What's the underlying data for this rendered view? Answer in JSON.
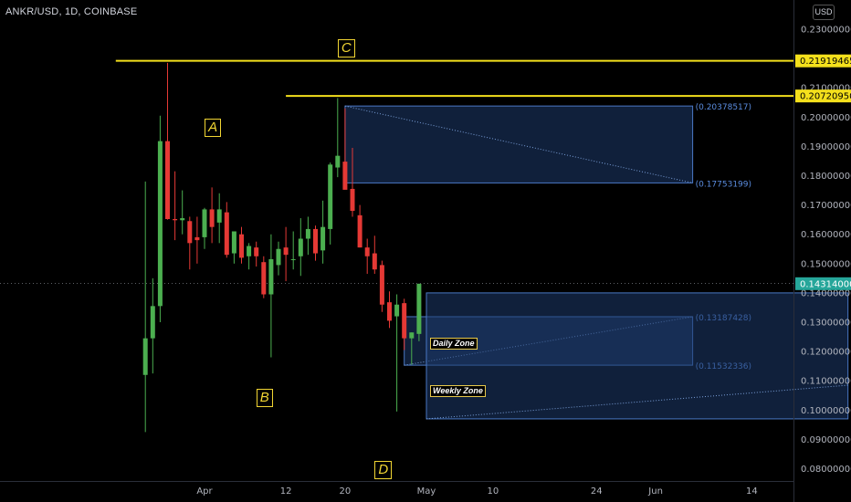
{
  "header": {
    "symbol": "ANKR/USD, 1D, COINBASE",
    "currency": "USD"
  },
  "colors": {
    "up": "#26a69a",
    "up_fill": "#4caf50",
    "down": "#e53935",
    "yellow": "#f4e01c",
    "zone_fill": "#1e3a6b",
    "zone_border": "#4a78c5",
    "price_tag": "#26a69a"
  },
  "chart_data": {
    "type": "candlestick",
    "ylim": [
      0.0755,
      0.2345
    ],
    "y_ticks": [
      "0.23000000",
      "0.22000000",
      "0.21000000",
      "0.20000000",
      "0.19000000",
      "0.18000000",
      "0.17000000",
      "0.16000000",
      "0.15000000",
      "0.14000000",
      "0.13000000",
      "0.12000000",
      "0.11000000",
      "0.10000000",
      "0.09000000",
      "0.08000000"
    ],
    "x_ticks": [
      {
        "date": "2020-04-01",
        "label": "Apr"
      },
      {
        "date": "2020-04-12",
        "label": "12"
      },
      {
        "date": "2020-04-20",
        "label": "20"
      },
      {
        "date": "2020-05-01",
        "label": "May"
      },
      {
        "date": "2020-05-10",
        "label": "10"
      },
      {
        "date": "2020-05-24",
        "label": "24"
      },
      {
        "date": "2020-06-01",
        "label": "Jun"
      },
      {
        "date": "2020-06-14",
        "label": "14"
      }
    ],
    "candles": [
      {
        "date": "2020-03-24",
        "o": 0.112,
        "h": 0.178,
        "l": 0.0925,
        "c": 0.1245
      },
      {
        "date": "2020-03-25",
        "o": 0.1245,
        "h": 0.145,
        "l": 0.1125,
        "c": 0.1355
      },
      {
        "date": "2020-03-26",
        "o": 0.1355,
        "h": 0.2005,
        "l": 0.13,
        "c": 0.1918
      },
      {
        "date": "2020-03-27",
        "o": 0.1918,
        "h": 0.2185,
        "l": 0.165,
        "c": 0.1652
      },
      {
        "date": "2020-03-28",
        "o": 0.1652,
        "h": 0.1815,
        "l": 0.158,
        "c": 0.1648
      },
      {
        "date": "2020-03-29",
        "o": 0.1648,
        "h": 0.175,
        "l": 0.16,
        "c": 0.1655
      },
      {
        "date": "2020-03-30",
        "o": 0.1645,
        "h": 0.166,
        "l": 0.148,
        "c": 0.157
      },
      {
        "date": "2020-03-31",
        "o": 0.159,
        "h": 0.166,
        "l": 0.15,
        "c": 0.158
      },
      {
        "date": "2020-04-01",
        "o": 0.159,
        "h": 0.169,
        "l": 0.155,
        "c": 0.1685
      },
      {
        "date": "2020-04-02",
        "o": 0.1685,
        "h": 0.176,
        "l": 0.157,
        "c": 0.1625
      },
      {
        "date": "2020-04-03",
        "o": 0.164,
        "h": 0.174,
        "l": 0.157,
        "c": 0.1685
      },
      {
        "date": "2020-04-04",
        "o": 0.1675,
        "h": 0.171,
        "l": 0.152,
        "c": 0.153
      },
      {
        "date": "2020-04-05",
        "o": 0.1535,
        "h": 0.161,
        "l": 0.15,
        "c": 0.161
      },
      {
        "date": "2020-04-06",
        "o": 0.16,
        "h": 0.1625,
        "l": 0.15,
        "c": 0.152
      },
      {
        "date": "2020-04-07",
        "o": 0.1525,
        "h": 0.157,
        "l": 0.148,
        "c": 0.156
      },
      {
        "date": "2020-04-08",
        "o": 0.1555,
        "h": 0.1575,
        "l": 0.149,
        "c": 0.1525
      },
      {
        "date": "2020-04-09",
        "o": 0.1505,
        "h": 0.1525,
        "l": 0.1382,
        "c": 0.1395
      },
      {
        "date": "2020-04-10",
        "o": 0.1395,
        "h": 0.16,
        "l": 0.118,
        "c": 0.1515
      },
      {
        "date": "2020-04-11",
        "o": 0.1495,
        "h": 0.1575,
        "l": 0.146,
        "c": 0.155
      },
      {
        "date": "2020-04-12",
        "o": 0.1555,
        "h": 0.1625,
        "l": 0.144,
        "c": 0.153
      },
      {
        "date": "2020-04-13",
        "o": 0.1512,
        "h": 0.161,
        "l": 0.148,
        "c": 0.1515
      },
      {
        "date": "2020-04-14",
        "o": 0.1525,
        "h": 0.1655,
        "l": 0.1458,
        "c": 0.1585
      },
      {
        "date": "2020-04-15",
        "o": 0.1585,
        "h": 0.166,
        "l": 0.153,
        "c": 0.1618
      },
      {
        "date": "2020-04-16",
        "o": 0.1618,
        "h": 0.163,
        "l": 0.151,
        "c": 0.1535
      },
      {
        "date": "2020-04-17",
        "o": 0.1545,
        "h": 0.1715,
        "l": 0.15,
        "c": 0.1625
      },
      {
        "date": "2020-04-18",
        "o": 0.1618,
        "h": 0.1845,
        "l": 0.1565,
        "c": 0.1838
      },
      {
        "date": "2020-04-19",
        "o": 0.1828,
        "h": 0.2065,
        "l": 0.1795,
        "c": 0.1868
      },
      {
        "date": "2020-04-20",
        "o": 0.1848,
        "h": 0.203,
        "l": 0.176,
        "c": 0.1752
      },
      {
        "date": "2020-04-21",
        "o": 0.1755,
        "h": 0.1895,
        "l": 0.166,
        "c": 0.168
      },
      {
        "date": "2020-04-22",
        "o": 0.1665,
        "h": 0.17,
        "l": 0.1555,
        "c": 0.1555
      },
      {
        "date": "2020-04-23",
        "o": 0.1555,
        "h": 0.1585,
        "l": 0.1465,
        "c": 0.1525
      },
      {
        "date": "2020-04-24",
        "o": 0.1535,
        "h": 0.1595,
        "l": 0.1465,
        "c": 0.148
      },
      {
        "date": "2020-04-25",
        "o": 0.1495,
        "h": 0.151,
        "l": 0.1335,
        "c": 0.136
      },
      {
        "date": "2020-04-26",
        "o": 0.1368,
        "h": 0.1405,
        "l": 0.128,
        "c": 0.1305
      },
      {
        "date": "2020-04-27",
        "o": 0.132,
        "h": 0.1395,
        "l": 0.0995,
        "c": 0.136
      },
      {
        "date": "2020-04-28",
        "o": 0.1365,
        "h": 0.138,
        "l": 0.1205,
        "c": 0.1245
      },
      {
        "date": "2020-04-29",
        "o": 0.1245,
        "h": 0.1265,
        "l": 0.1155,
        "c": 0.1265
      },
      {
        "date": "2020-04-30",
        "o": 0.126,
        "h": 0.1432,
        "l": 0.1235,
        "c": 0.1431
      }
    ],
    "price_levels": [
      {
        "value": 0.21919465,
        "label": "0.21919465",
        "from": "2020-03-20"
      },
      {
        "value": 0.2072095,
        "label": "0.20720950",
        "from": "2020-04-12"
      }
    ],
    "current_price": {
      "value": 0.14314,
      "label": "0.14314000"
    },
    "zones": [
      {
        "top": 0.20378517,
        "bottom": 0.17753199,
        "from": "2020-04-20",
        "to": "2020-06-06",
        "top_label": "(0.20378517)",
        "bottom_label": "(0.17753199)",
        "diag": "down"
      },
      {
        "top": 0.13187428,
        "bottom": 0.11532336,
        "from": "2020-04-28",
        "to": "2020-06-06",
        "top_label": "(0.13187428)",
        "bottom_label": "(0.11532336)",
        "diag": "up"
      },
      {
        "top": 0.14,
        "bottom": 0.097,
        "from": "2020-05-01",
        "to": "2020-06-27",
        "diag": "up"
      }
    ],
    "annotations": [
      {
        "text": "A",
        "date": "2020-04-02",
        "value": 0.1965,
        "style": "letter"
      },
      {
        "text": "B",
        "date": "2020-04-09",
        "value": 0.104,
        "style": "letter"
      },
      {
        "text": "C",
        "date": "2020-04-20",
        "value": 0.2235,
        "style": "letter"
      },
      {
        "text": "D",
        "date": "2020-04-25",
        "value": 0.0795,
        "style": "letter"
      },
      {
        "text": "Daily Zone",
        "date": "2020-05-01",
        "value": 0.1226,
        "style": "zone"
      },
      {
        "text": "Weekly Zone",
        "date": "2020-05-01",
        "value": 0.1062,
        "style": "zone"
      }
    ]
  }
}
